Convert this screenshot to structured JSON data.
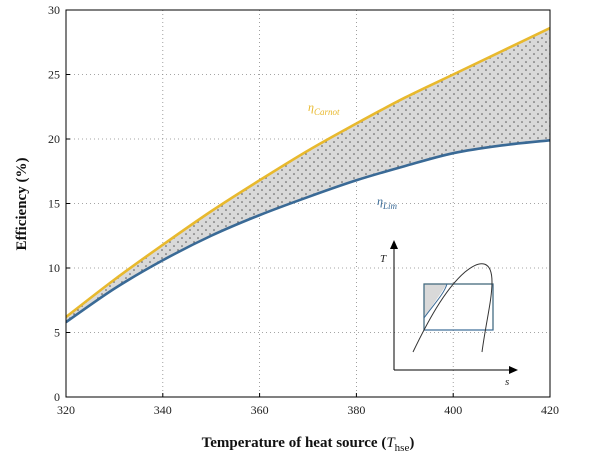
{
  "chart_data": {
    "type": "line",
    "title": "",
    "xlabel": "Temperature of heat source (",
    "xlabel_symbol": "T",
    "xlabel_subscript": "hse",
    "xlabel_close": ")",
    "ylabel": "Efficiency (%)",
    "xlim": [
      320,
      420
    ],
    "ylim": [
      0,
      30
    ],
    "x_ticks": [
      320,
      340,
      360,
      380,
      400,
      420
    ],
    "y_ticks": [
      0,
      5,
      10,
      15,
      20,
      25,
      30
    ],
    "grid": true,
    "grid_style": "dotted",
    "fill_between_series": true,
    "fill_color": "#d9d9d9",
    "series": [
      {
        "name": "η",
        "name_subscript": "Carnot",
        "color": "#e8b92e",
        "x": [
          320,
          330,
          340,
          350,
          360,
          370,
          380,
          390,
          400,
          410,
          420
        ],
        "y": [
          6.2,
          9.1,
          11.8,
          14.4,
          16.8,
          19.1,
          21.2,
          23.2,
          25.0,
          26.8,
          28.6
        ]
      },
      {
        "name": "η",
        "name_subscript": "Lim",
        "color": "#3a6a96",
        "x": [
          320,
          330,
          340,
          350,
          360,
          370,
          380,
          390,
          400,
          410,
          420
        ],
        "y": [
          5.8,
          8.4,
          10.6,
          12.5,
          14.1,
          15.5,
          16.8,
          17.9,
          18.9,
          19.5,
          19.9
        ]
      }
    ],
    "inset": {
      "x_axis_label": "s",
      "y_axis_label": "T",
      "highlight_color": "#e8b92e",
      "box_color": "#3a6a96"
    }
  }
}
